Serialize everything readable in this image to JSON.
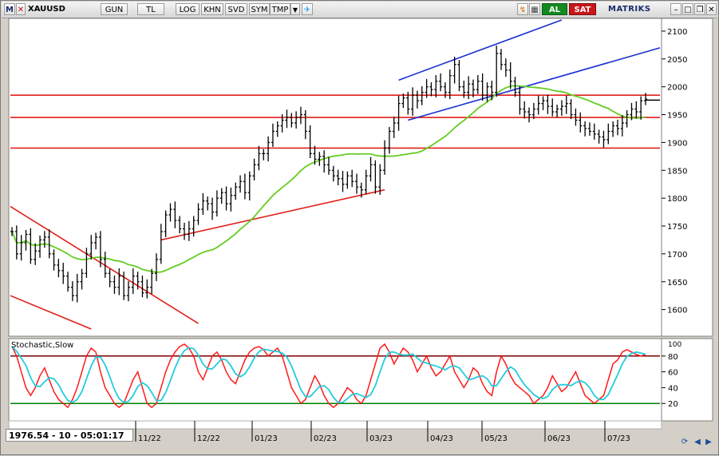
{
  "toolbar": {
    "menu_m": "M",
    "symbol": "XAUUSD",
    "buttons": [
      "GUN",
      "TL",
      "LOG",
      "KHN",
      "SVD",
      "SYM",
      "TMP"
    ],
    "al": "AL",
    "sat": "SAT",
    "brand": "MATRIKS"
  },
  "status": {
    "readout": "1976.54 - 10 - 05:01:17"
  },
  "indicator": {
    "name": "Stochastic,Slow"
  },
  "price_axis": {
    "ticks": [
      1600,
      1650,
      1700,
      1750,
      1800,
      1850,
      1900,
      1950,
      2000,
      2050,
      2100
    ],
    "range": [
      1555,
      2120
    ],
    "horizontal_levels": [
      1985,
      1945,
      1890
    ],
    "last_price_marker": 1976
  },
  "stoch_axis": {
    "ticks": [
      20,
      40,
      60,
      80
    ],
    "top_label": "100",
    "range": [
      0,
      100
    ],
    "levels": [
      80,
      20
    ]
  },
  "x_axis": {
    "labels": [
      "11/22",
      "12/22",
      "01/23",
      "02/23",
      "03/23",
      "04/23",
      "05/23",
      "06/23",
      "07/23"
    ]
  },
  "colors": {
    "price_bars": "#000000",
    "moving_average": "#66cc22",
    "support_lines": "#e0201a",
    "channel_lines": "#1a2fd0",
    "stoch_k": "#ff1a1a",
    "stoch_d": "#22ccdd",
    "stoch_80": "#7a0000",
    "stoch_20": "#008000"
  },
  "chart_data": [
    {
      "type": "ohlc",
      "series": [
        {
          "values": [
            1740,
            1700,
            1720,
            1735,
            1690,
            1705,
            1725,
            1730,
            1700,
            1680,
            1670,
            1660,
            1640,
            1625,
            1650,
            1665,
            1700,
            1720,
            1730,
            1690,
            1665,
            1650,
            1640,
            1660,
            1625,
            1640,
            1660,
            1650,
            1630,
            1640,
            1665,
            1690,
            1740,
            1770,
            1780,
            1760,
            1745,
            1735,
            1745,
            1760,
            1780,
            1795,
            1790,
            1775,
            1800,
            1810,
            1790,
            1805,
            1820,
            1830,
            1810,
            1840,
            1860,
            1880,
            1880,
            1900,
            1920,
            1930,
            1940,
            1945,
            1935,
            1945,
            1950,
            1920,
            1880,
            1870,
            1875,
            1860,
            1850,
            1840,
            1835,
            1825,
            1840,
            1830,
            1820,
            1815,
            1840,
            1860,
            1820,
            1850,
            1890,
            1920,
            1935,
            1970,
            1980,
            1960,
            1985,
            1975,
            1990,
            2000,
            1995,
            2010,
            2000,
            1990,
            2020,
            2040,
            2000,
            1990,
            2005,
            1995,
            2010,
            1985,
            2000,
            1990,
            2060,
            2040,
            2030,
            2010,
            1990,
            1960,
            1955,
            1950,
            1960,
            1970,
            1975,
            1965,
            1955,
            1960,
            1965,
            1970,
            1950,
            1940,
            1930,
            1925,
            1920,
            1915,
            1910,
            1905,
            1920,
            1930,
            1925,
            1935,
            1950,
            1960,
            1955,
            1975,
            1978
          ]
        }
      ]
    },
    {
      "type": "line",
      "series": [
        {
          "values": [
            92,
            80,
            60,
            40,
            30,
            40,
            55,
            65,
            50,
            35,
            25,
            20,
            15,
            25,
            40,
            60,
            80,
            90,
            85,
            60,
            40,
            30,
            20,
            15,
            20,
            35,
            50,
            60,
            40,
            20,
            15,
            20,
            40,
            60,
            75,
            85,
            92,
            95,
            90,
            80,
            60,
            50,
            65,
            80,
            85,
            75,
            60,
            50,
            45,
            60,
            75,
            85,
            90,
            92,
            88,
            80,
            85,
            90,
            80,
            60,
            40,
            30,
            20,
            25,
            40,
            55,
            45,
            30,
            20,
            15,
            20,
            30,
            40,
            35,
            25,
            20,
            30,
            50,
            70,
            90,
            95,
            85,
            70,
            80,
            90,
            85,
            75,
            60,
            70,
            80,
            65,
            55,
            60,
            70,
            80,
            60,
            50,
            40,
            50,
            65,
            60,
            45,
            35,
            30,
            60,
            80,
            70,
            55,
            45,
            40,
            35,
            30,
            20,
            25,
            30,
            40,
            55,
            45,
            35,
            40,
            50,
            60,
            45,
            30,
            25,
            20,
            25,
            30,
            50,
            70,
            75,
            85,
            88,
            85,
            82,
            80,
            82
          ]
        }
      ]
    }
  ]
}
